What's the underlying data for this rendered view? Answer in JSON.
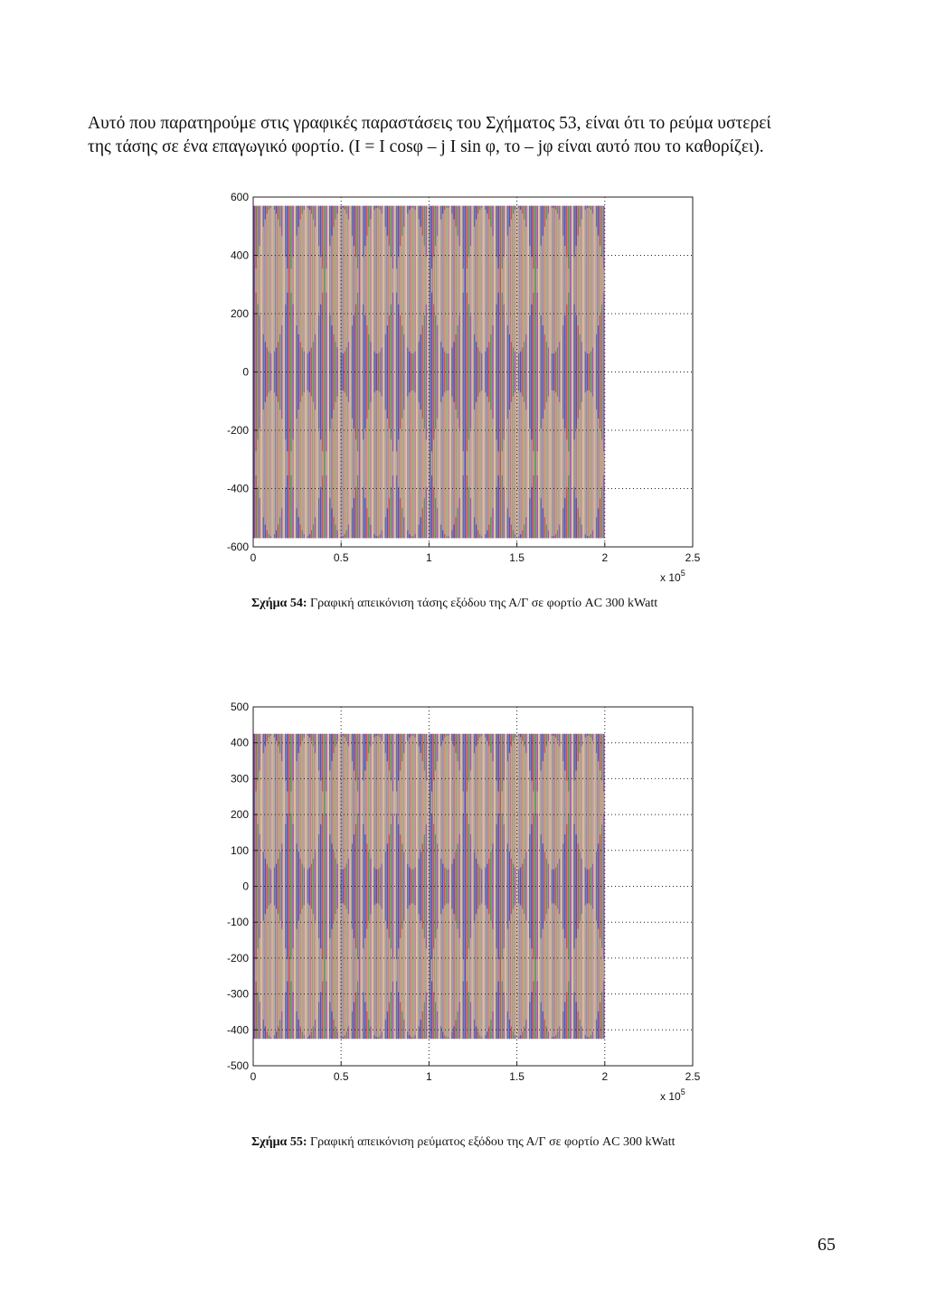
{
  "paragraph": {
    "line1": "Αυτό που παρατηρούμε στις γραφικές παραστάσεις του Σχήματος 53, είναι ότι το ρεύμα υστερεί",
    "line2": "της τάσης σε ένα επαγωγικό φορτίο. (I = I cosφ – j I sin φ, το – jφ είναι αυτό που το καθορίζει)."
  },
  "figure54": {
    "caption_label": "Σχήμα 54:",
    "caption_text": " Γραφική απεικόνιση τάσης εξόδου της Α/Γ σε φορτίο AC 300 kWatt"
  },
  "figure55": {
    "caption_label": "Σχήμα 55:",
    "caption_text": " Γραφική απεικόνιση ρεύματος εξόδου της Α/Γ σε φορτίο AC 300 kWatt"
  },
  "page_number": "65",
  "chart_data": [
    {
      "type": "line",
      "title": "",
      "xlabel": "",
      "ylabel": "",
      "x_multiplier": "x 10^5",
      "xlim": [
        0,
        2.5
      ],
      "ylim": [
        -600,
        600
      ],
      "xticks": [
        "0",
        "0.5",
        "1",
        "1.5",
        "2",
        "2.5"
      ],
      "yticks": [
        "600",
        "400",
        "200",
        "0",
        "-200",
        "-400",
        "-600"
      ],
      "grid": true,
      "amplitude": 570,
      "x_end": 2.0,
      "series_colors": [
        "#1a1aa8",
        "#c41818",
        "#1d7a1d",
        "#8a1a9a",
        "#c8a86a",
        "#3a3a6a"
      ]
    },
    {
      "type": "line",
      "title": "",
      "xlabel": "",
      "ylabel": "",
      "x_multiplier": "x 10^5",
      "xlim": [
        0,
        2.5
      ],
      "ylim": [
        -500,
        500
      ],
      "xticks": [
        "0",
        "0.5",
        "1",
        "1.5",
        "2",
        "2.5"
      ],
      "yticks": [
        "500",
        "400",
        "300",
        "200",
        "100",
        "0",
        "-100",
        "-200",
        "-300",
        "-400",
        "-500"
      ],
      "grid": true,
      "amplitude": 425,
      "x_end": 2.0,
      "series_colors": [
        "#1a1aa8",
        "#c41818",
        "#1d7a1d",
        "#8a1a9a",
        "#c8a86a",
        "#3a3a6a"
      ]
    }
  ]
}
